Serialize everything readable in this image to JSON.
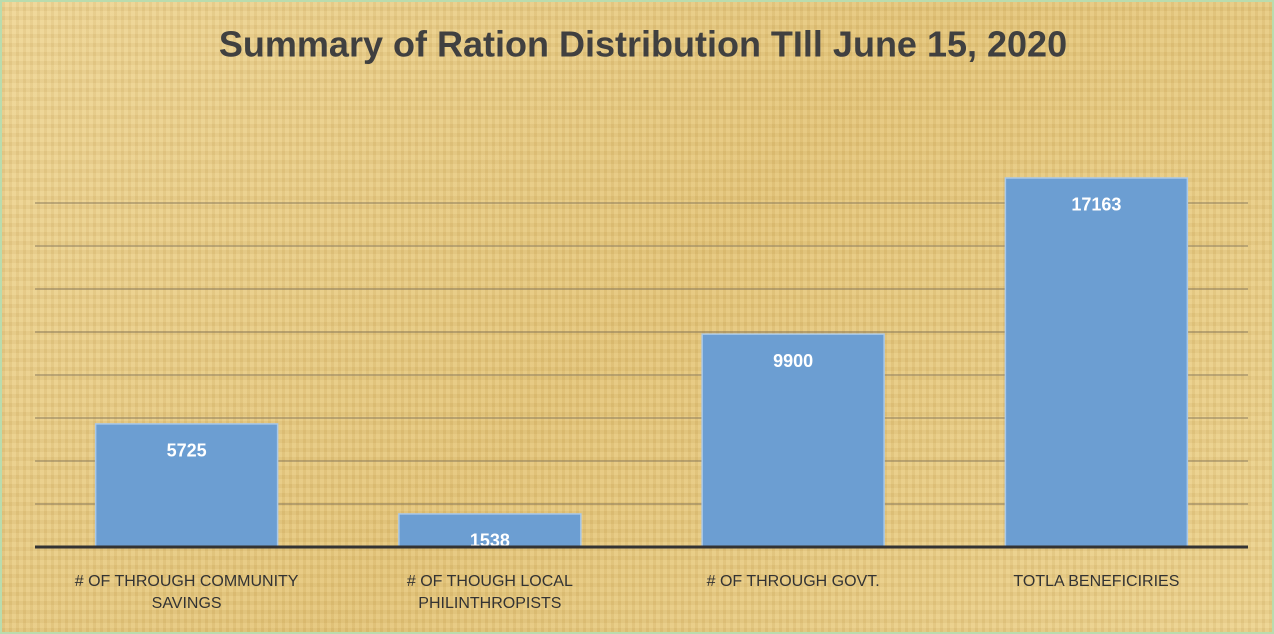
{
  "chart_data": {
    "type": "bar",
    "title": "Summary of  Ration Distribution TIll June 15, 2020",
    "categories": [
      "# OF THROUGH COMMUNITY SAVINGS",
      "# OF THOUGH LOCAL PHILINTHROPISTS",
      "# OF THROUGH GOVT.",
      "TOTLA BENEFICIRIES"
    ],
    "values": [
      5725,
      1538,
      9900,
      17163
    ],
    "color": "#6c9ed2",
    "ylim": [
      0,
      18000
    ],
    "yticks": [
      0,
      2000,
      4000,
      6000,
      8000,
      10000,
      12000,
      14000,
      16000
    ],
    "grid": true
  }
}
